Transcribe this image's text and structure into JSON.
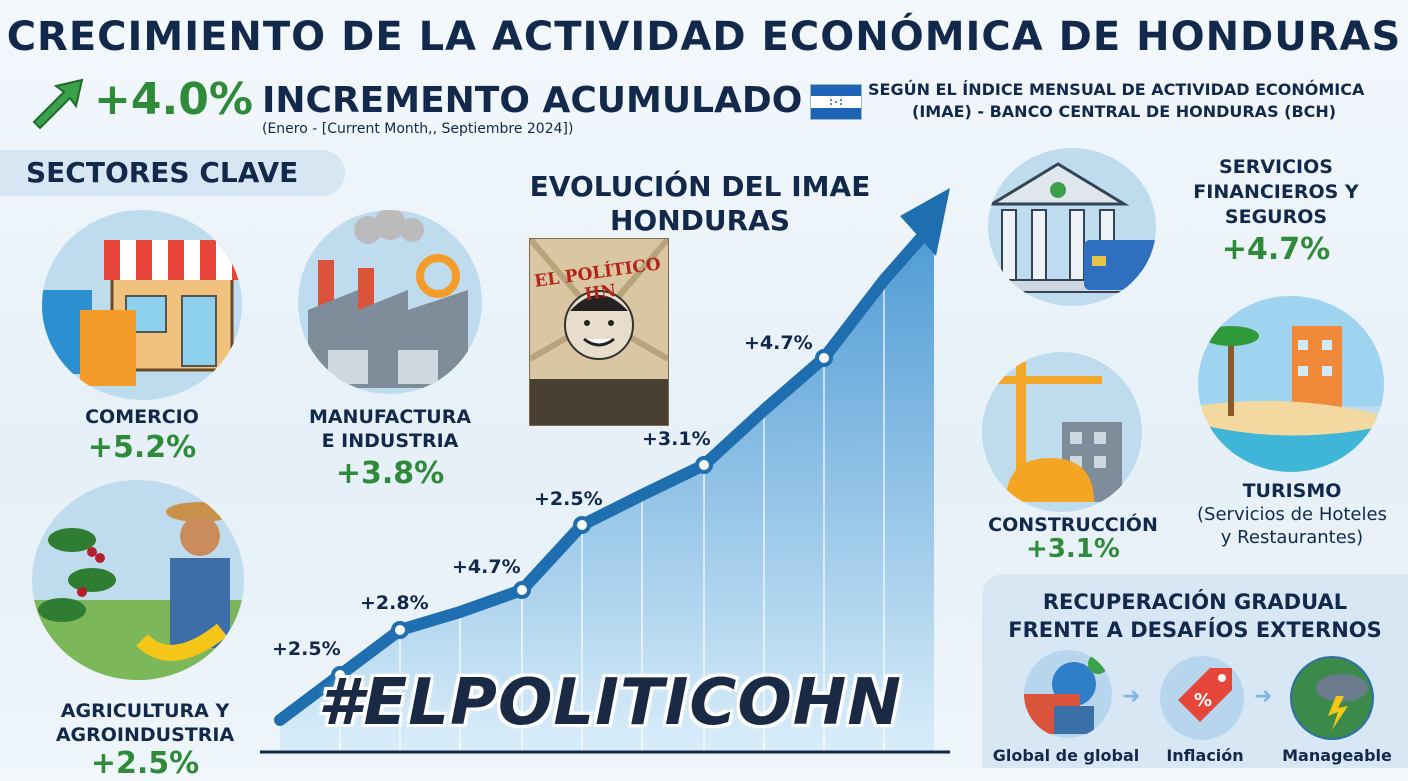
{
  "header": {
    "title": "CRECIMIENTO DE LA ACTIVIDAD ECONÓMICA DE HONDURAS",
    "increment_value": "+4.0%",
    "increment_label": "INCREMENTO ACUMULADO",
    "period": "(Enero - [Current Month,, Septiembre 2024])",
    "source_line1": "SEGÚN EL ÍNDICE MENSUAL DE ACTIVIDAD ECONÓMICA",
    "source_line2": "(IMAE) - BANCO CENTRAL DE HONDURAS (BCH)"
  },
  "sectors_heading": "SECTORES CLAVE",
  "sectors": {
    "comercio": {
      "name": "COMERCIO",
      "pct": "+5.2%"
    },
    "manufactura": {
      "name1": "MANUFACTURA",
      "name2": "E INDUSTRIA",
      "pct": "+3.8%"
    },
    "agricultura": {
      "name1": "AGRICULTURA Y",
      "name2": "AGROINDUSTRIA",
      "pct": "+2.5%"
    },
    "financieros": {
      "name1": "SERVICIOS",
      "name2": "FINANCIEROS Y",
      "name3": "SEGUROS",
      "pct": "+4.7%"
    },
    "construccion": {
      "name": "CONSTRUCCIÓN",
      "pct": "+3.1%"
    },
    "turismo": {
      "name": "TURISMO",
      "sub1": "(Servicios de Hoteles",
      "sub2": "y Restaurantes)"
    }
  },
  "chart": {
    "title1": "EVOLUCIÓN DEL IMAE",
    "title2": "HONDURAS",
    "points": [
      "+2.5%",
      "+2.8%",
      "+4.7%",
      "+2.5%",
      "+3.1%",
      "+4.7%"
    ]
  },
  "poster_text": "EL POLÍTICO HN",
  "hashtag": "#ELPOLITICOHN",
  "panel": {
    "title1": "RECUPERACIÓN GRADUAL",
    "title2": "FRENTE A DESAFÍOS EXTERNOS",
    "items": [
      "Global de global",
      "Inflación",
      "Manageable"
    ]
  },
  "colors": {
    "navy": "#13294b",
    "green": "#2f8a3a",
    "chart_blue": "#1f6fb0"
  }
}
